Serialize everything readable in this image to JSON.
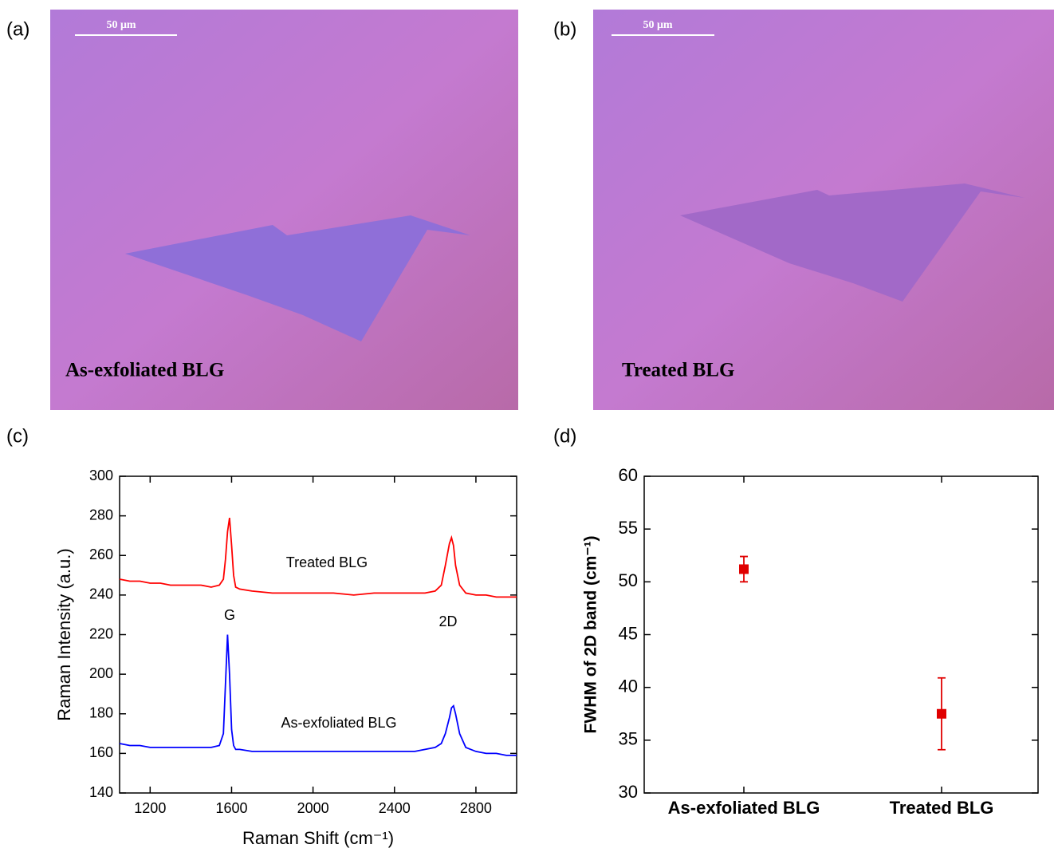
{
  "images": [
    {
      "label": "(a)",
      "scale_bar": "50 μm",
      "caption": "As-exfoliated BLG"
    },
    {
      "label": "(b)",
      "scale_bar": "50 μm",
      "caption": "Treated BLG"
    }
  ],
  "chart_data": [
    {
      "type": "line",
      "label": "(c)",
      "xlabel": "Raman Shift (cm⁻¹)",
      "ylabel": "Raman Intensity (a.u.)",
      "x": [
        1050,
        1100,
        1150,
        1200,
        1250,
        1300,
        1350,
        1400,
        1450,
        1500,
        1540,
        1560,
        1570,
        1580,
        1590,
        1600,
        1610,
        1620,
        1640,
        1700,
        1800,
        1900,
        2000,
        2100,
        2200,
        2300,
        2400,
        2500,
        2550,
        2600,
        2630,
        2650,
        2670,
        2680,
        2690,
        2700,
        2720,
        2750,
        2800,
        2850,
        2900,
        2950,
        3000
      ],
      "series": [
        {
          "name": "Treated BLG",
          "color": "#ff0000",
          "values": [
            248,
            247,
            247,
            246,
            246,
            245,
            245,
            245,
            245,
            244,
            245,
            248,
            258,
            272,
            279,
            265,
            250,
            244,
            243,
            242,
            241,
            241,
            241,
            241,
            240,
            241,
            241,
            241,
            241,
            242,
            245,
            255,
            266,
            269,
            265,
            255,
            245,
            241,
            240,
            240,
            239,
            239,
            239
          ]
        },
        {
          "name": "As-exfoliated BLG",
          "color": "#0000ff",
          "values": [
            165,
            164,
            164,
            163,
            163,
            163,
            163,
            163,
            163,
            163,
            164,
            170,
            195,
            220,
            200,
            172,
            164,
            162,
            162,
            161,
            161,
            161,
            161,
            161,
            161,
            161,
            161,
            161,
            162,
            163,
            165,
            170,
            178,
            183,
            184,
            180,
            170,
            163,
            161,
            160,
            160,
            159,
            159
          ]
        }
      ],
      "annotations": [
        "G",
        "2D"
      ],
      "xlim": [
        1050,
        3000
      ],
      "xticks": [
        1200,
        1600,
        2000,
        2400,
        2800
      ],
      "ylim": [
        140,
        300
      ],
      "yticks": [
        140,
        160,
        180,
        200,
        220,
        240,
        260,
        280,
        300
      ]
    },
    {
      "type": "scatter",
      "label": "(d)",
      "ylabel": "FWHM of 2D band (cm⁻¹)",
      "categories": [
        "As-exfoliated BLG",
        "Treated BLG"
      ],
      "values": [
        51.2,
        37.5
      ],
      "errors": [
        1.2,
        3.4
      ],
      "color": "#e00000",
      "ylim": [
        30,
        60
      ],
      "yticks": [
        30,
        35,
        40,
        45,
        50,
        55,
        60
      ]
    }
  ]
}
